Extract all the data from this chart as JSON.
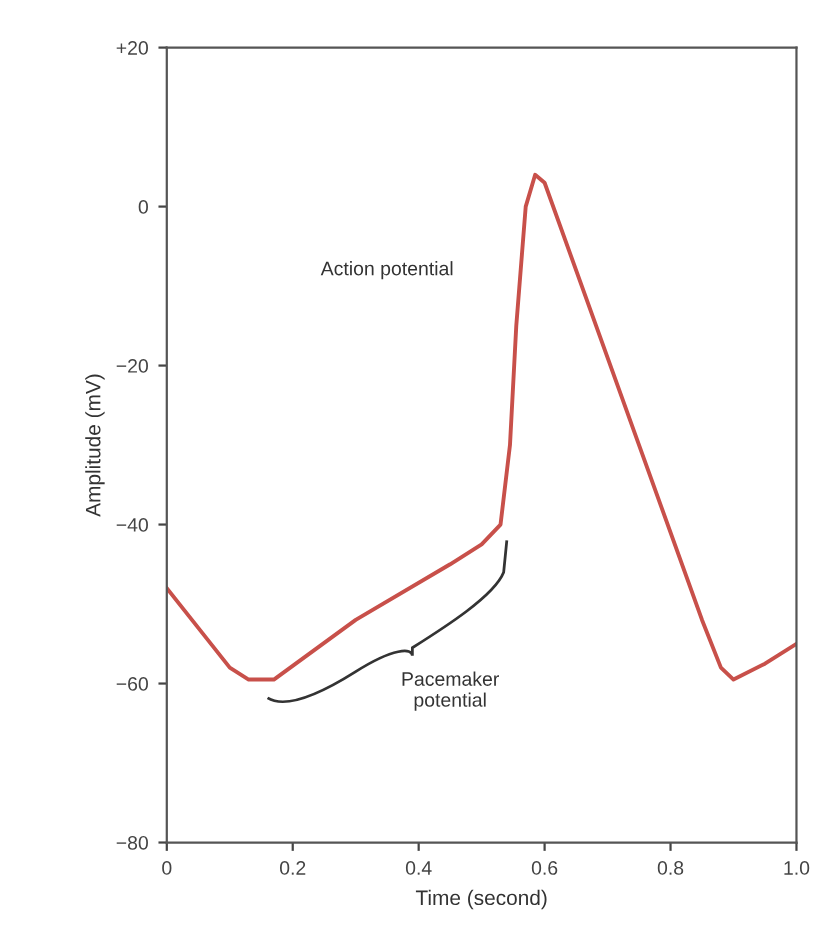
{
  "chart_data": {
    "type": "line",
    "xlabel": "Time (second)",
    "ylabel": "Amplitude (mV)",
    "x": [
      0,
      0.05,
      0.1,
      0.13,
      0.17,
      0.3,
      0.45,
      0.5,
      0.53,
      0.545,
      0.555,
      0.57,
      0.585,
      0.6,
      0.75,
      0.85,
      0.88,
      0.9,
      0.95,
      1.0
    ],
    "series": [
      {
        "color": "#c8504a",
        "values": [
          -48,
          -53,
          -58,
          -59.5,
          -59.5,
          -52,
          -45,
          -42.5,
          -40,
          -30,
          -15,
          0,
          4,
          3,
          -30,
          -52,
          -58,
          -59.5,
          -57.5,
          -55
        ]
      }
    ],
    "xlim": [
      0,
      1
    ],
    "ylim": [
      -80,
      20
    ],
    "xticks": [
      0,
      0.2,
      0.4,
      0.6,
      0.8,
      {
        "value": 1,
        "label": "1.0"
      }
    ],
    "yticks": [
      {
        "value": 20,
        "label": "+20"
      },
      0,
      {
        "value": -20,
        "label": "−20"
      },
      {
        "value": -40,
        "label": "−40"
      },
      {
        "value": -60,
        "label": "−60"
      },
      {
        "value": -80,
        "label": "−80"
      }
    ],
    "annotations": [
      "Action potential",
      "Pacemaker\npotential"
    ],
    "grid": false,
    "legend": false,
    "marker": "none",
    "line_style": "solid"
  }
}
